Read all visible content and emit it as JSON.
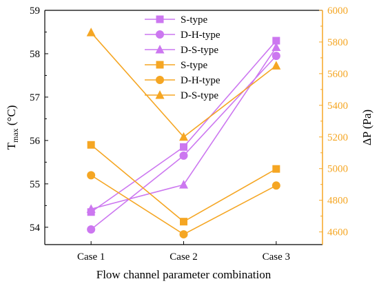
{
  "chart_data": {
    "type": "line",
    "categories": [
      "Case 1",
      "Case 2",
      "Case 3"
    ],
    "xlabel": "Flow channel parameter combination",
    "left_axis": {
      "label_main": "T",
      "label_sub": "max",
      "label_unit": " (°C)",
      "ylim": [
        53.6,
        59
      ],
      "ticks": [
        54,
        55,
        56,
        57,
        58,
        59
      ],
      "color": "#000000"
    },
    "right_axis": {
      "label": "ΔP (Pa)",
      "ylim": [
        4520,
        6000
      ],
      "ticks": [
        4600,
        4800,
        5000,
        5200,
        5400,
        5600,
        5800,
        6000
      ],
      "color": "#f5a623"
    },
    "series": [
      {
        "name": "S-type",
        "axis": "left",
        "marker": "square",
        "color": "#cc77f0",
        "values": [
          54.35,
          55.85,
          58.3
        ]
      },
      {
        "name": "D-H-type",
        "axis": "left",
        "marker": "circle",
        "color": "#cc77f0",
        "values": [
          53.95,
          55.65,
          57.95
        ]
      },
      {
        "name": "D-S-type",
        "axis": "left",
        "marker": "triangle",
        "color": "#cc77f0",
        "values": [
          54.42,
          54.98,
          58.15
        ]
      },
      {
        "name": "S-type",
        "axis": "right",
        "marker": "square",
        "color": "#f5a623",
        "values": [
          5150,
          4665,
          4998
        ]
      },
      {
        "name": "D-H-type",
        "axis": "right",
        "marker": "circle",
        "color": "#f5a623",
        "values": [
          4958,
          4585,
          4893
        ]
      },
      {
        "name": "D-S-type",
        "axis": "right",
        "marker": "triangle",
        "color": "#f5a623",
        "values": [
          5860,
          5200,
          5650
        ]
      }
    ],
    "legend_position": "top-center"
  }
}
